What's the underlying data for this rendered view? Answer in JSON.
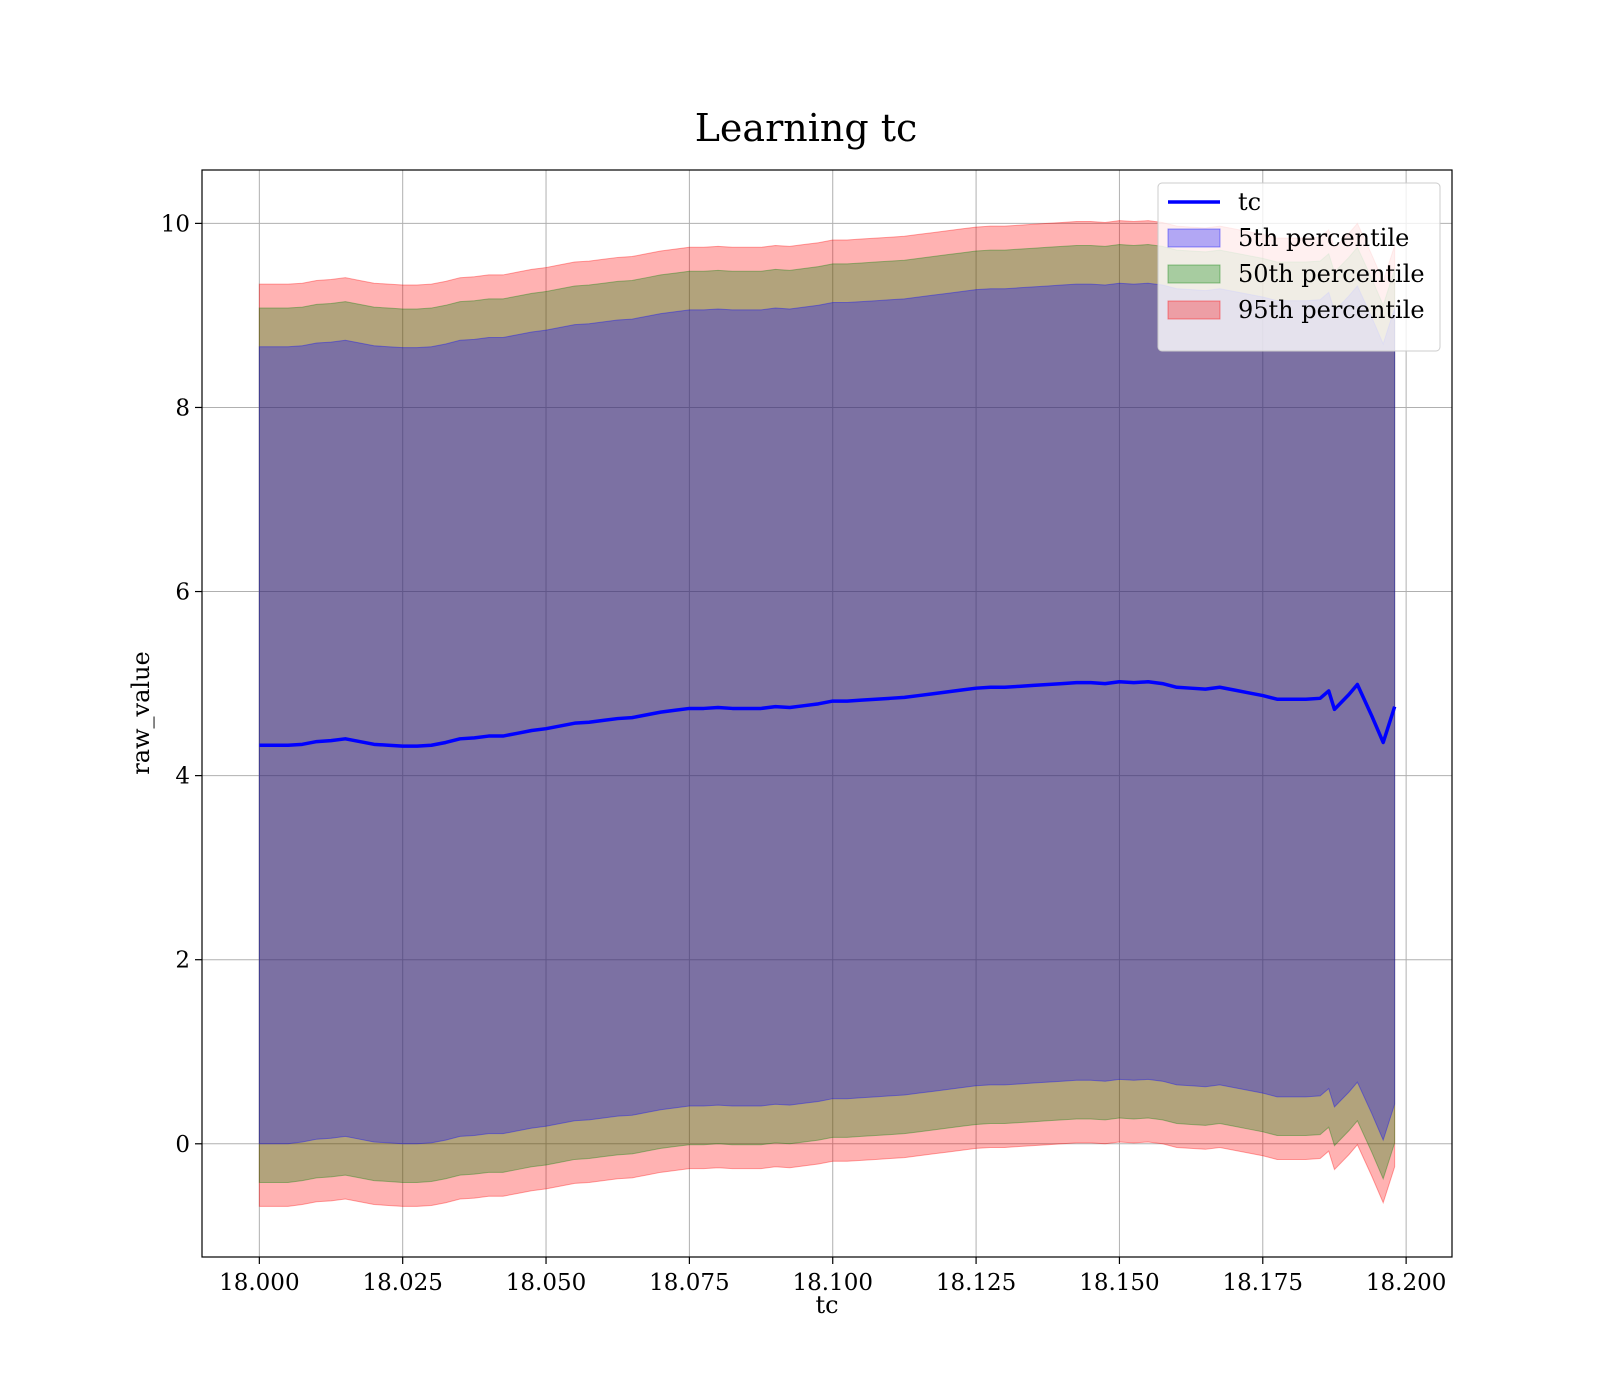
{
  "chart_data": {
    "type": "area",
    "title": "Learning tc",
    "xlabel": "tc",
    "ylabel": "raw_value",
    "xlim": [
      17.99,
      18.208
    ],
    "ylim": [
      -1.23,
      10.58
    ],
    "xticks": [
      18.0,
      18.025,
      18.05,
      18.075,
      18.1,
      18.125,
      18.15,
      18.175,
      18.2
    ],
    "xtick_labels": [
      "18.000",
      "18.025",
      "18.050",
      "18.075",
      "18.100",
      "18.125",
      "18.150",
      "18.175",
      "18.200"
    ],
    "yticks": [
      0,
      2,
      4,
      6,
      8,
      10
    ],
    "ytick_labels": [
      "0",
      "2",
      "4",
      "6",
      "8",
      "10"
    ],
    "grid": true,
    "legend_position": "top-right",
    "x": [
      18.0,
      18.0025,
      18.005,
      18.0075,
      18.01,
      18.0125,
      18.015,
      18.0175,
      18.02,
      18.0225,
      18.025,
      18.0275,
      18.03,
      18.0325,
      18.035,
      18.0375,
      18.04,
      18.0425,
      18.045,
      18.0475,
      18.05,
      18.0525,
      18.055,
      18.0575,
      18.06,
      18.0625,
      18.065,
      18.0675,
      18.07,
      18.0725,
      18.075,
      18.0775,
      18.08,
      18.0825,
      18.085,
      18.0875,
      18.09,
      18.0925,
      18.095,
      18.0975,
      18.1,
      18.1025,
      18.105,
      18.1075,
      18.11,
      18.1125,
      18.115,
      18.1175,
      18.12,
      18.1225,
      18.125,
      18.1275,
      18.13,
      18.1325,
      18.135,
      18.1375,
      18.14,
      18.1425,
      18.145,
      18.1475,
      18.15,
      18.1525,
      18.155,
      18.1575,
      18.16,
      18.1625,
      18.165,
      18.1675,
      18.17,
      18.1725,
      18.175,
      18.1775,
      18.18,
      18.1825,
      18.185,
      18.1865,
      18.1875,
      18.19,
      18.1915,
      18.194,
      18.196,
      18.198
    ],
    "series": [
      {
        "name": "tc",
        "color": "#0000ff",
        "values": [
          4.33,
          4.33,
          4.33,
          4.34,
          4.37,
          4.38,
          4.4,
          4.37,
          4.34,
          4.33,
          4.32,
          4.32,
          4.33,
          4.36,
          4.4,
          4.41,
          4.43,
          4.43,
          4.46,
          4.49,
          4.51,
          4.54,
          4.57,
          4.58,
          4.6,
          4.62,
          4.63,
          4.66,
          4.69,
          4.71,
          4.73,
          4.73,
          4.74,
          4.73,
          4.73,
          4.73,
          4.75,
          4.74,
          4.76,
          4.78,
          4.81,
          4.81,
          4.82,
          4.83,
          4.84,
          4.85,
          4.87,
          4.89,
          4.91,
          4.93,
          4.95,
          4.96,
          4.96,
          4.97,
          4.98,
          4.99,
          5.0,
          5.01,
          5.01,
          5.0,
          5.02,
          5.01,
          5.02,
          5.0,
          4.96,
          4.95,
          4.94,
          4.96,
          4.93,
          4.9,
          4.87,
          4.83,
          4.83,
          4.83,
          4.84,
          4.92,
          4.72,
          4.88,
          4.99,
          4.65,
          4.36,
          4.75
        ]
      }
    ],
    "bands": [
      {
        "name": "95th percentile",
        "color": "#ff0000",
        "opacity": 0.3,
        "lower": [
          -0.68,
          -0.68,
          -0.68,
          -0.66,
          -0.63,
          -0.62,
          -0.6,
          -0.63,
          -0.66,
          -0.67,
          -0.68,
          -0.68,
          -0.67,
          -0.64,
          -0.6,
          -0.59,
          -0.57,
          -0.57,
          -0.54,
          -0.51,
          -0.49,
          -0.46,
          -0.43,
          -0.42,
          -0.4,
          -0.38,
          -0.37,
          -0.34,
          -0.31,
          -0.29,
          -0.27,
          -0.27,
          -0.26,
          -0.27,
          -0.27,
          -0.27,
          -0.25,
          -0.26,
          -0.24,
          -0.22,
          -0.19,
          -0.19,
          -0.18,
          -0.17,
          -0.16,
          -0.15,
          -0.13,
          -0.11,
          -0.09,
          -0.07,
          -0.05,
          -0.04,
          -0.04,
          -0.03,
          -0.02,
          -0.01,
          0.0,
          0.01,
          0.01,
          0.0,
          0.02,
          0.01,
          0.02,
          0.0,
          -0.04,
          -0.05,
          -0.06,
          -0.04,
          -0.07,
          -0.1,
          -0.13,
          -0.17,
          -0.17,
          -0.17,
          -0.16,
          -0.08,
          -0.28,
          -0.12,
          -0.01,
          -0.35,
          -0.64,
          -0.25
        ],
        "upper": [
          9.34,
          9.34,
          9.34,
          9.35,
          9.38,
          9.39,
          9.41,
          9.38,
          9.35,
          9.34,
          9.33,
          9.33,
          9.34,
          9.37,
          9.41,
          9.42,
          9.44,
          9.44,
          9.47,
          9.5,
          9.52,
          9.55,
          9.58,
          9.59,
          9.61,
          9.63,
          9.64,
          9.67,
          9.7,
          9.72,
          9.74,
          9.74,
          9.75,
          9.74,
          9.74,
          9.74,
          9.76,
          9.75,
          9.77,
          9.79,
          9.82,
          9.82,
          9.83,
          9.84,
          9.85,
          9.86,
          9.88,
          9.9,
          9.92,
          9.94,
          9.96,
          9.97,
          9.97,
          9.98,
          9.99,
          10.0,
          10.01,
          10.02,
          10.02,
          10.01,
          10.03,
          10.02,
          10.03,
          10.01,
          9.97,
          9.96,
          9.95,
          9.97,
          9.94,
          9.91,
          9.88,
          9.84,
          9.84,
          9.84,
          9.85,
          9.93,
          9.73,
          9.89,
          10.0,
          9.66,
          9.37,
          9.76
        ]
      },
      {
        "name": "50th percentile",
        "color": "#008000",
        "opacity": 0.3,
        "lower": [
          -0.42,
          -0.42,
          -0.42,
          -0.4,
          -0.37,
          -0.36,
          -0.34,
          -0.37,
          -0.4,
          -0.41,
          -0.42,
          -0.42,
          -0.41,
          -0.38,
          -0.34,
          -0.33,
          -0.31,
          -0.31,
          -0.28,
          -0.25,
          -0.23,
          -0.2,
          -0.17,
          -0.16,
          -0.14,
          -0.12,
          -0.11,
          -0.08,
          -0.05,
          -0.03,
          -0.01,
          -0.01,
          0.0,
          -0.01,
          -0.01,
          -0.01,
          0.01,
          0.0,
          0.02,
          0.04,
          0.07,
          0.07,
          0.08,
          0.09,
          0.1,
          0.11,
          0.13,
          0.15,
          0.17,
          0.19,
          0.21,
          0.22,
          0.22,
          0.23,
          0.24,
          0.25,
          0.26,
          0.27,
          0.27,
          0.26,
          0.28,
          0.27,
          0.28,
          0.26,
          0.22,
          0.21,
          0.2,
          0.22,
          0.19,
          0.16,
          0.13,
          0.09,
          0.09,
          0.09,
          0.1,
          0.18,
          -0.02,
          0.14,
          0.25,
          -0.09,
          -0.38,
          0.01
        ],
        "upper": [
          9.08,
          9.08,
          9.08,
          9.09,
          9.12,
          9.13,
          9.15,
          9.12,
          9.09,
          9.08,
          9.07,
          9.07,
          9.08,
          9.11,
          9.15,
          9.16,
          9.18,
          9.18,
          9.21,
          9.24,
          9.26,
          9.29,
          9.32,
          9.33,
          9.35,
          9.37,
          9.38,
          9.41,
          9.44,
          9.46,
          9.48,
          9.48,
          9.49,
          9.48,
          9.48,
          9.48,
          9.5,
          9.49,
          9.51,
          9.53,
          9.56,
          9.56,
          9.57,
          9.58,
          9.59,
          9.6,
          9.62,
          9.64,
          9.66,
          9.68,
          9.7,
          9.71,
          9.71,
          9.72,
          9.73,
          9.74,
          9.75,
          9.76,
          9.76,
          9.75,
          9.77,
          9.76,
          9.77,
          9.75,
          9.71,
          9.7,
          9.69,
          9.71,
          9.68,
          9.65,
          9.62,
          9.58,
          9.58,
          9.58,
          9.59,
          9.67,
          9.47,
          9.63,
          9.74,
          9.4,
          9.11,
          9.5
        ]
      },
      {
        "name": "5th percentile",
        "color": "#0000ff",
        "opacity": 0.3,
        "lower": [
          0.0,
          0.0,
          0.0,
          0.02,
          0.05,
          0.06,
          0.08,
          0.05,
          0.02,
          0.01,
          0.0,
          0.0,
          0.01,
          0.04,
          0.08,
          0.09,
          0.11,
          0.11,
          0.14,
          0.17,
          0.19,
          0.22,
          0.25,
          0.26,
          0.28,
          0.3,
          0.31,
          0.34,
          0.37,
          0.39,
          0.41,
          0.41,
          0.42,
          0.41,
          0.41,
          0.41,
          0.43,
          0.42,
          0.44,
          0.46,
          0.49,
          0.49,
          0.5,
          0.51,
          0.52,
          0.53,
          0.55,
          0.57,
          0.59,
          0.61,
          0.63,
          0.64,
          0.64,
          0.65,
          0.66,
          0.67,
          0.68,
          0.69,
          0.69,
          0.68,
          0.7,
          0.69,
          0.7,
          0.68,
          0.64,
          0.63,
          0.62,
          0.64,
          0.61,
          0.58,
          0.55,
          0.51,
          0.51,
          0.51,
          0.52,
          0.6,
          0.4,
          0.56,
          0.67,
          0.33,
          0.04,
          0.43
        ],
        "upper": [
          8.66,
          8.66,
          8.66,
          8.67,
          8.7,
          8.71,
          8.73,
          8.7,
          8.67,
          8.66,
          8.65,
          8.65,
          8.66,
          8.69,
          8.73,
          8.74,
          8.76,
          8.76,
          8.79,
          8.82,
          8.84,
          8.87,
          8.9,
          8.91,
          8.93,
          8.95,
          8.96,
          8.99,
          9.02,
          9.04,
          9.06,
          9.06,
          9.07,
          9.06,
          9.06,
          9.06,
          9.08,
          9.07,
          9.09,
          9.11,
          9.14,
          9.14,
          9.15,
          9.16,
          9.17,
          9.18,
          9.2,
          9.22,
          9.24,
          9.26,
          9.28,
          9.29,
          9.29,
          9.3,
          9.31,
          9.32,
          9.33,
          9.34,
          9.34,
          9.33,
          9.35,
          9.34,
          9.35,
          9.33,
          9.29,
          9.28,
          9.27,
          9.29,
          9.26,
          9.23,
          9.2,
          9.16,
          9.16,
          9.16,
          9.17,
          9.25,
          9.05,
          9.21,
          9.32,
          8.98,
          8.69,
          9.08
        ]
      }
    ],
    "legend": [
      {
        "label": "tc",
        "kind": "line",
        "color": "#0000ff"
      },
      {
        "label": "5th percentile",
        "kind": "patch",
        "color": "#0000ff"
      },
      {
        "label": "50th percentile",
        "kind": "patch",
        "color": "#008000"
      },
      {
        "label": "95th percentile",
        "kind": "patch",
        "color": "#ff0000"
      }
    ]
  }
}
